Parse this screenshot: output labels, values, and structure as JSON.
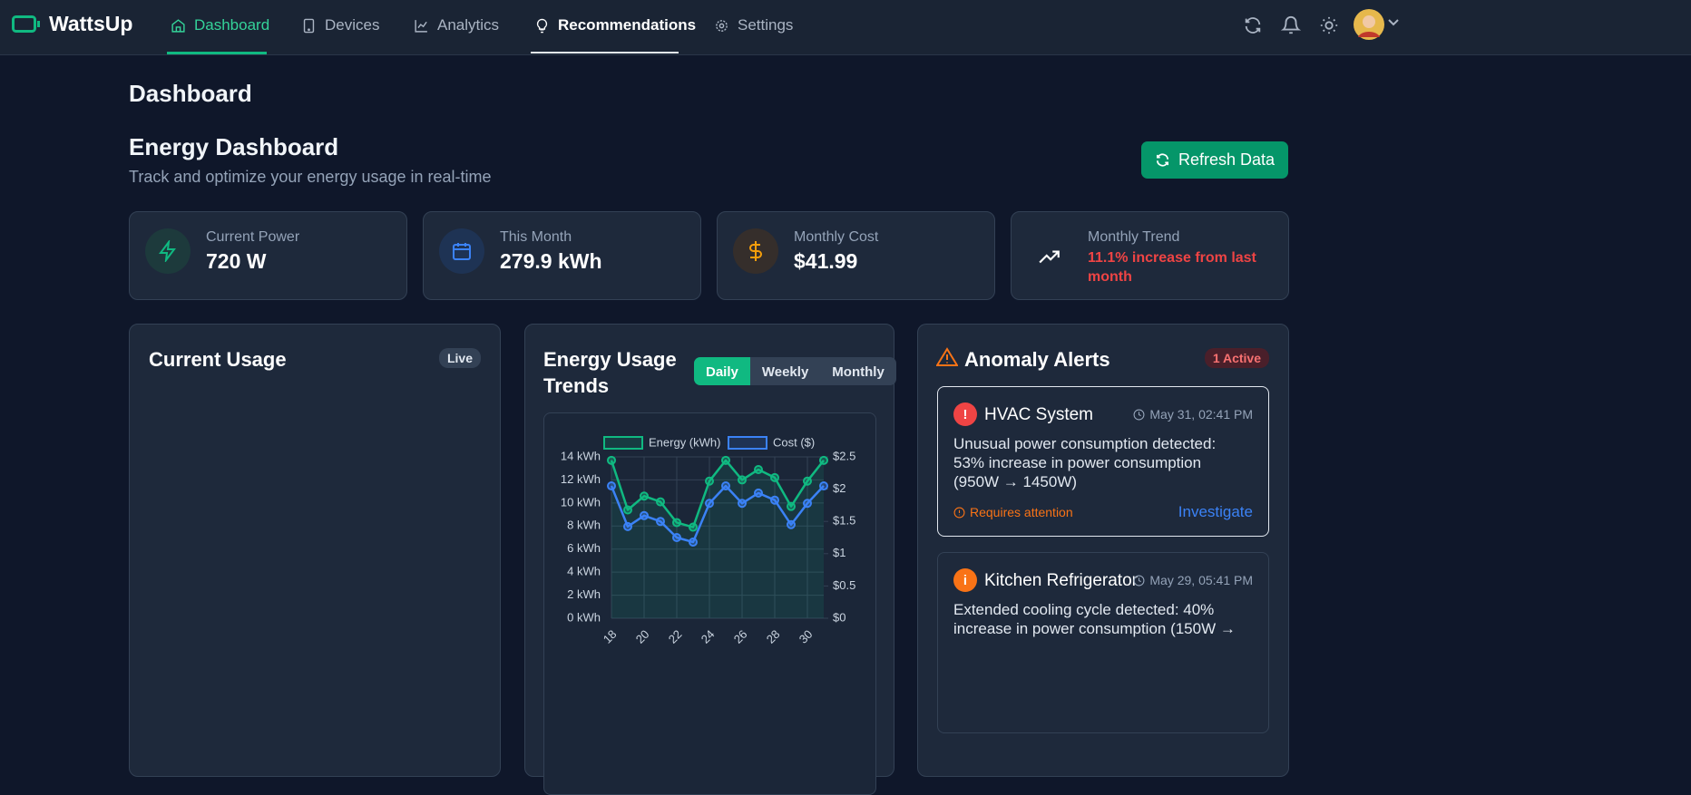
{
  "nav": {
    "brand": "WattsUp",
    "items": [
      "Dashboard",
      "Devices",
      "Analytics",
      "Recommendations",
      "Settings"
    ]
  },
  "page": {
    "title": "Dashboard",
    "heading": "Energy Dashboard",
    "subtitle": "Track and optimize your energy usage in real-time",
    "refresh": "Refresh Data"
  },
  "stats": [
    {
      "label": "Current Power",
      "value": "720 W"
    },
    {
      "label": "This Month",
      "value": "279.9 kWh"
    },
    {
      "label": "Monthly Cost",
      "value": "$41.99"
    },
    {
      "label": "Monthly Trend",
      "value": "11.1% increase from last month"
    }
  ],
  "current_usage": {
    "title": "Current Usage",
    "badge": "Live"
  },
  "trends": {
    "title": "Energy Usage Trends",
    "tabs": [
      "Daily",
      "Weekly",
      "Monthly"
    ]
  },
  "chart_data": {
    "type": "line",
    "categories": [
      "18",
      null,
      "20",
      null,
      "22",
      null,
      "24",
      null,
      "26",
      null,
      "28",
      null,
      "30",
      null
    ],
    "series": [
      {
        "name": "Energy (kWh)",
        "color": "#10b981",
        "values": [
          13.7,
          9.4,
          10.6,
          10.1,
          8.3,
          7.9,
          11.9,
          13.7,
          12.0,
          12.9,
          12.2,
          9.7,
          11.9,
          13.7
        ]
      },
      {
        "name": "Cost ($)",
        "color": "#3b82f6",
        "axis": "y2",
        "values": [
          2.05,
          1.42,
          1.59,
          1.5,
          1.25,
          1.18,
          1.78,
          2.05,
          1.78,
          1.94,
          1.83,
          1.45,
          1.78,
          2.05
        ]
      }
    ],
    "ylim": [
      0,
      14
    ],
    "yticks": [
      {
        "value": 0,
        "label": "0 kWh"
      },
      {
        "value": 2,
        "label": "2 kWh"
      },
      {
        "value": 4,
        "label": "4 kWh"
      },
      {
        "value": 6,
        "label": "6 kWh"
      },
      {
        "value": 8,
        "label": "8 kWh"
      },
      {
        "value": 10,
        "label": "10 kWh"
      },
      {
        "value": 12,
        "label": "12 kWh"
      },
      {
        "value": 14,
        "label": "14 kWh"
      }
    ],
    "y2lim": [
      0,
      2.5
    ],
    "y2ticks": [
      {
        "value": 0,
        "label": "$0"
      },
      {
        "value": 0.5,
        "label": "$0.5"
      },
      {
        "value": 1,
        "label": "$1"
      },
      {
        "value": 1.5,
        "label": "$1.5"
      },
      {
        "value": 2,
        "label": "$2"
      },
      {
        "value": 2.5,
        "label": "$2.5"
      }
    ],
    "grid": true
  },
  "alerts": {
    "title": "Anomaly Alerts",
    "badge": "1 Active",
    "items": [
      {
        "icon": "!",
        "device": "HVAC System",
        "time": "May 31, 02:41 PM",
        "message": "Unusual power consumption detected: 53% increase in power consumption (950W → 1450W)",
        "status": "Requires attention",
        "action": "Investigate"
      },
      {
        "icon": "i",
        "device": "Kitchen Refrigerator",
        "time": "May 29, 05:41 PM",
        "message": "Extended cooling cycle detected: 40% increase in power consumption (150W →"
      }
    ]
  }
}
